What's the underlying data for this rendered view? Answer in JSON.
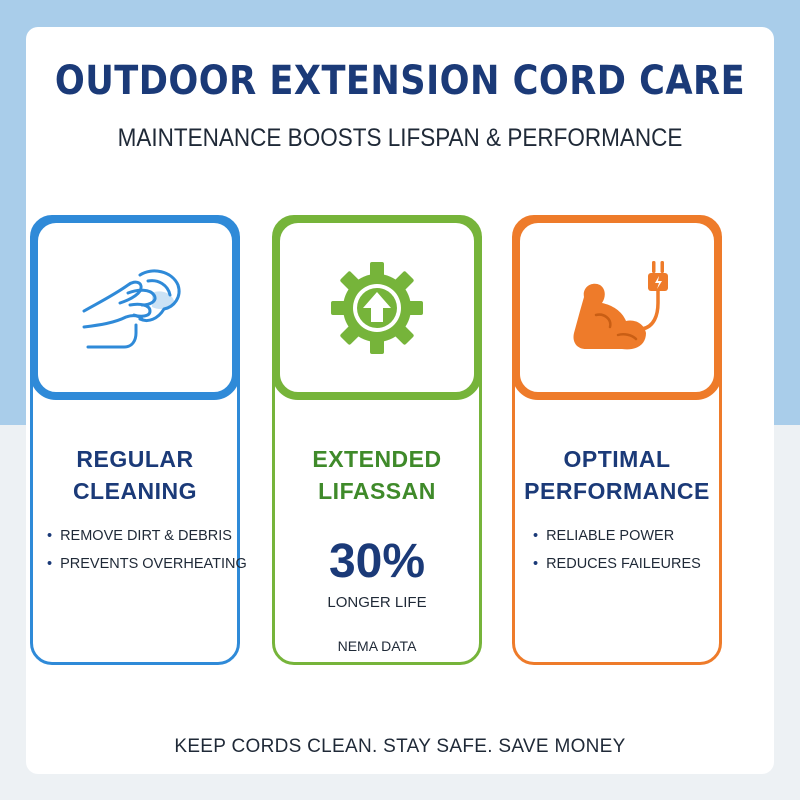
{
  "header": {
    "title": "OUTDOOR EXTENSION CORD CARE",
    "subtitle": "MAINTENANCE BOOSTS LIFSPAN & PERFORMANCE"
  },
  "cards": [
    {
      "title_line1": "REGULAR",
      "title_line2": "CLEANING",
      "icon": "hand-wiping-cloth-icon",
      "color": "#2f8ad8",
      "bullets": [
        "REMOVE DIRT & DEBRIS",
        "PREVENTS OVERHEATING"
      ]
    },
    {
      "title_line1": "EXTENDED",
      "title_line2": "LIFASSAN",
      "icon": "gear-up-arrow-icon",
      "color": "#76b43a",
      "stat_value": "30%",
      "stat_label": "LONGER LIFE",
      "stat_source": "NEMA DATA"
    },
    {
      "title_line1": "OPTIMAL",
      "title_line2": "PERFORMANCE",
      "icon": "flexed-arm-plug-icon",
      "color": "#ee7b2a",
      "bullets": [
        "RELIABLE POWER",
        "REDUCES FAILEURES"
      ]
    }
  ],
  "footer": {
    "tagline": "KEEP CORDS CLEAN. STAY SAFE. SAVE MONEY"
  }
}
